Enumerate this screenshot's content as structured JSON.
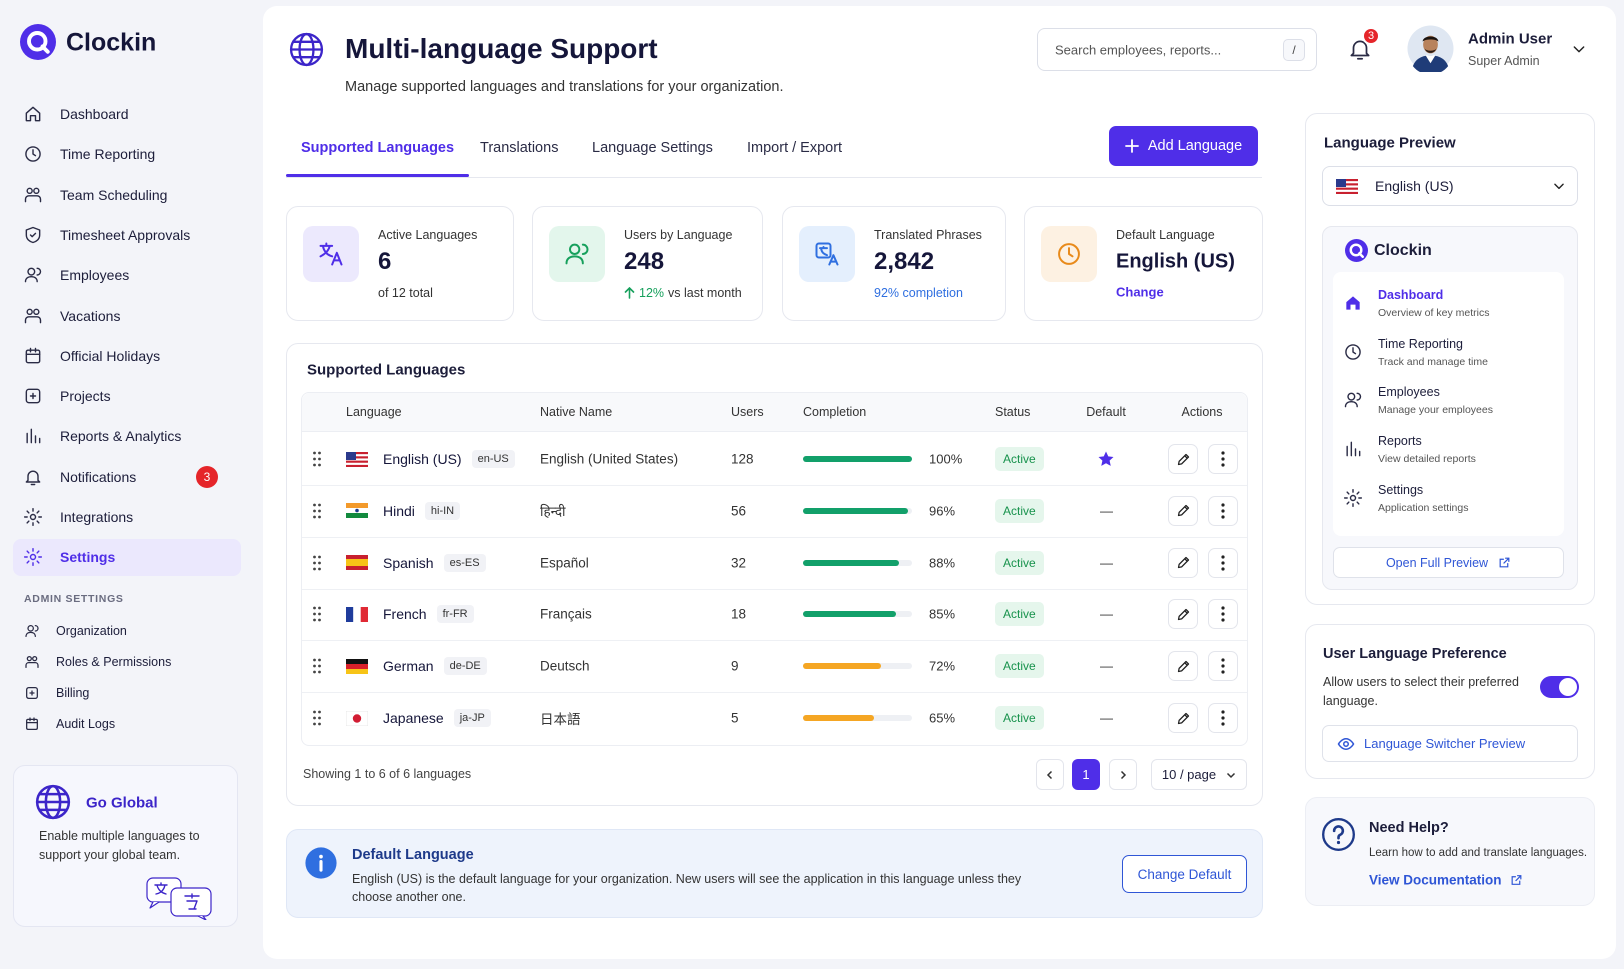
{
  "sidebar": {
    "brand": "Clockin",
    "nav": [
      {
        "label": "Dashboard"
      },
      {
        "label": "Time Reporting"
      },
      {
        "label": "Team Scheduling"
      },
      {
        "label": "Timesheet Approvals"
      },
      {
        "label": "Employees"
      },
      {
        "label": "Vacations"
      },
      {
        "label": "Official Holidays"
      },
      {
        "label": "Projects"
      },
      {
        "label": "Reports & Analytics"
      },
      {
        "label": "Notifications",
        "badge": 3
      },
      {
        "label": "Integrations"
      },
      {
        "label": "Settings",
        "active": true
      }
    ],
    "admin_title": "ADMIN SETTINGS",
    "admin_nav": [
      "Organization",
      "Roles & Permissions",
      "Billing",
      "Audit Logs"
    ],
    "promo": {
      "title": "Go Global",
      "text": "Enable multiple languages to support your global team."
    }
  },
  "header": {
    "title": "Multi-language Support",
    "subtitle": "Manage supported languages and translations for your organization.",
    "search_placeholder": "Search employees, reports...",
    "search_shortcut": "/",
    "notification_count": 3,
    "user": {
      "name": "Admin User",
      "role": "Super Admin"
    }
  },
  "tabs": {
    "items": [
      "Supported Languages",
      "Translations",
      "Language Settings",
      "Import / Export"
    ],
    "active": 0
  },
  "add_button": "Add Language",
  "stats": [
    {
      "label": "Active Languages",
      "value": 6,
      "note": "of 12 total"
    },
    {
      "label": "Users by Language",
      "value": 248,
      "change": "12%",
      "change_note": "vs last month"
    },
    {
      "label": "Translated Phrases",
      "value": "2,842",
      "note": "92% completion"
    },
    {
      "label": "Default Language",
      "value": "English (US)",
      "link": "Change"
    }
  ],
  "table": {
    "title": "Supported Languages",
    "columns": [
      "Language",
      "Native Name",
      "Users",
      "Completion",
      "Status",
      "Default",
      "Actions"
    ],
    "rows": [
      {
        "name": "English (US)",
        "code": "en-US",
        "native": "English (United States)",
        "users": 128,
        "completion": {
          "value": 100,
          "label": "100%"
        },
        "color": "#12a06a",
        "status": "Active",
        "default": true
      },
      {
        "name": "Hindi",
        "code": "hi-IN",
        "native": "हिन्दी",
        "users": 56,
        "completion": {
          "value": 96,
          "label": "96%"
        },
        "color": "#12a06a",
        "status": "Active",
        "default": "—"
      },
      {
        "name": "Spanish",
        "code": "es-ES",
        "native": "Español",
        "users": 32,
        "completion": {
          "value": 88,
          "label": "88%"
        },
        "color": "#12a06a",
        "status": "Active",
        "default": "—"
      },
      {
        "name": "French",
        "code": "fr-FR",
        "native": "Français",
        "users": 18,
        "completion": {
          "value": 85,
          "label": "85%"
        },
        "color": "#12a06a",
        "status": "Active",
        "default": "—"
      },
      {
        "name": "German",
        "code": "de-DE",
        "native": "Deutsch",
        "users": 9,
        "completion": {
          "value": 72,
          "label": "72%"
        },
        "color": "#f5a623",
        "status": "Active",
        "default": "—"
      },
      {
        "name": "Japanese",
        "code": "ja-JP",
        "native": "日本語",
        "users": 5,
        "completion": {
          "value": 65,
          "label": "65%"
        },
        "color": "#f5a623",
        "status": "Active",
        "default": "—"
      }
    ],
    "footer": "Showing 1 to 6 of 6 languages",
    "page": 1,
    "per_page": "10 / page"
  },
  "info": {
    "title": "Default Language",
    "text": "English (US) is the default language for your organization. New users will see the application in this language unless they choose another one.",
    "button": "Change Default"
  },
  "preview": {
    "title": "Language Preview",
    "selected": "English (US)",
    "brand": "Clockin",
    "items": [
      {
        "label": "Dashboard",
        "desc": "Overview of key metrics"
      },
      {
        "label": "Time Reporting",
        "desc": "Track and manage time"
      },
      {
        "label": "Employees",
        "desc": "Manage your employees"
      },
      {
        "label": "Reports",
        "desc": "View detailed reports"
      },
      {
        "label": "Settings",
        "desc": "Application settings"
      }
    ],
    "button": "Open Full Preview"
  },
  "preference": {
    "title": "User Language Preference",
    "desc": "Allow users to select their preferred language.",
    "enabled": true,
    "button": "Language Switcher Preview"
  },
  "help": {
    "title": "Need Help?",
    "text": "Learn how to add and translate languages.",
    "link": "View Documentation"
  }
}
